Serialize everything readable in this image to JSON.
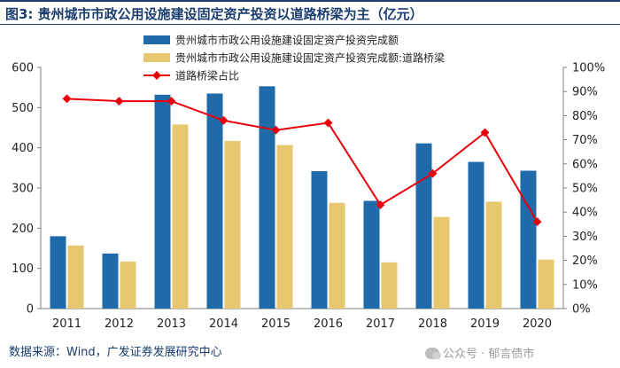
{
  "header": {
    "title": "图3: 贵州城市市政公用设施建设固定资产投资以道路桥梁为主（亿元）"
  },
  "footer": {
    "source": "数据来源：Wind，广发证券发展研究中心",
    "watermark": "公众号 · 郁言债市"
  },
  "chart_data": {
    "type": "bar",
    "title": "",
    "categories": [
      "2011",
      "2012",
      "2013",
      "2014",
      "2015",
      "2016",
      "2017",
      "2018",
      "2019",
      "2020"
    ],
    "series": [
      {
        "name": "贵州城市市政公用设施建设固定资产投资完成额",
        "type": "bar",
        "axis": "left",
        "color": "#1f6aa8",
        "values": [
          180,
          137,
          532,
          535,
          553,
          342,
          268,
          411,
          365,
          343
        ]
      },
      {
        "name": "贵州城市市政公用设施建设固定资产投资完成额:道路桥梁",
        "type": "bar",
        "axis": "left",
        "color": "#e7c870",
        "values": [
          157,
          117,
          458,
          417,
          407,
          263,
          115,
          228,
          266,
          122
        ]
      },
      {
        "name": "道路桥梁占比",
        "type": "line",
        "axis": "right",
        "color": "#e8000b",
        "values": [
          87,
          86,
          86,
          78,
          74,
          77,
          43,
          56,
          73,
          36
        ]
      }
    ],
    "y_left": {
      "min": 0,
      "max": 600,
      "ticks": [
        "0",
        "100",
        "200",
        "300",
        "400",
        "500",
        "600"
      ]
    },
    "y_right": {
      "min": 0,
      "max": 100,
      "ticks": [
        "0%",
        "10%",
        "20%",
        "30%",
        "40%",
        "50%",
        "60%",
        "70%",
        "80%",
        "90%",
        "100%"
      ]
    },
    "xlabel": "",
    "ylabel": "",
    "legend_position": "top-left",
    "grid": false
  }
}
